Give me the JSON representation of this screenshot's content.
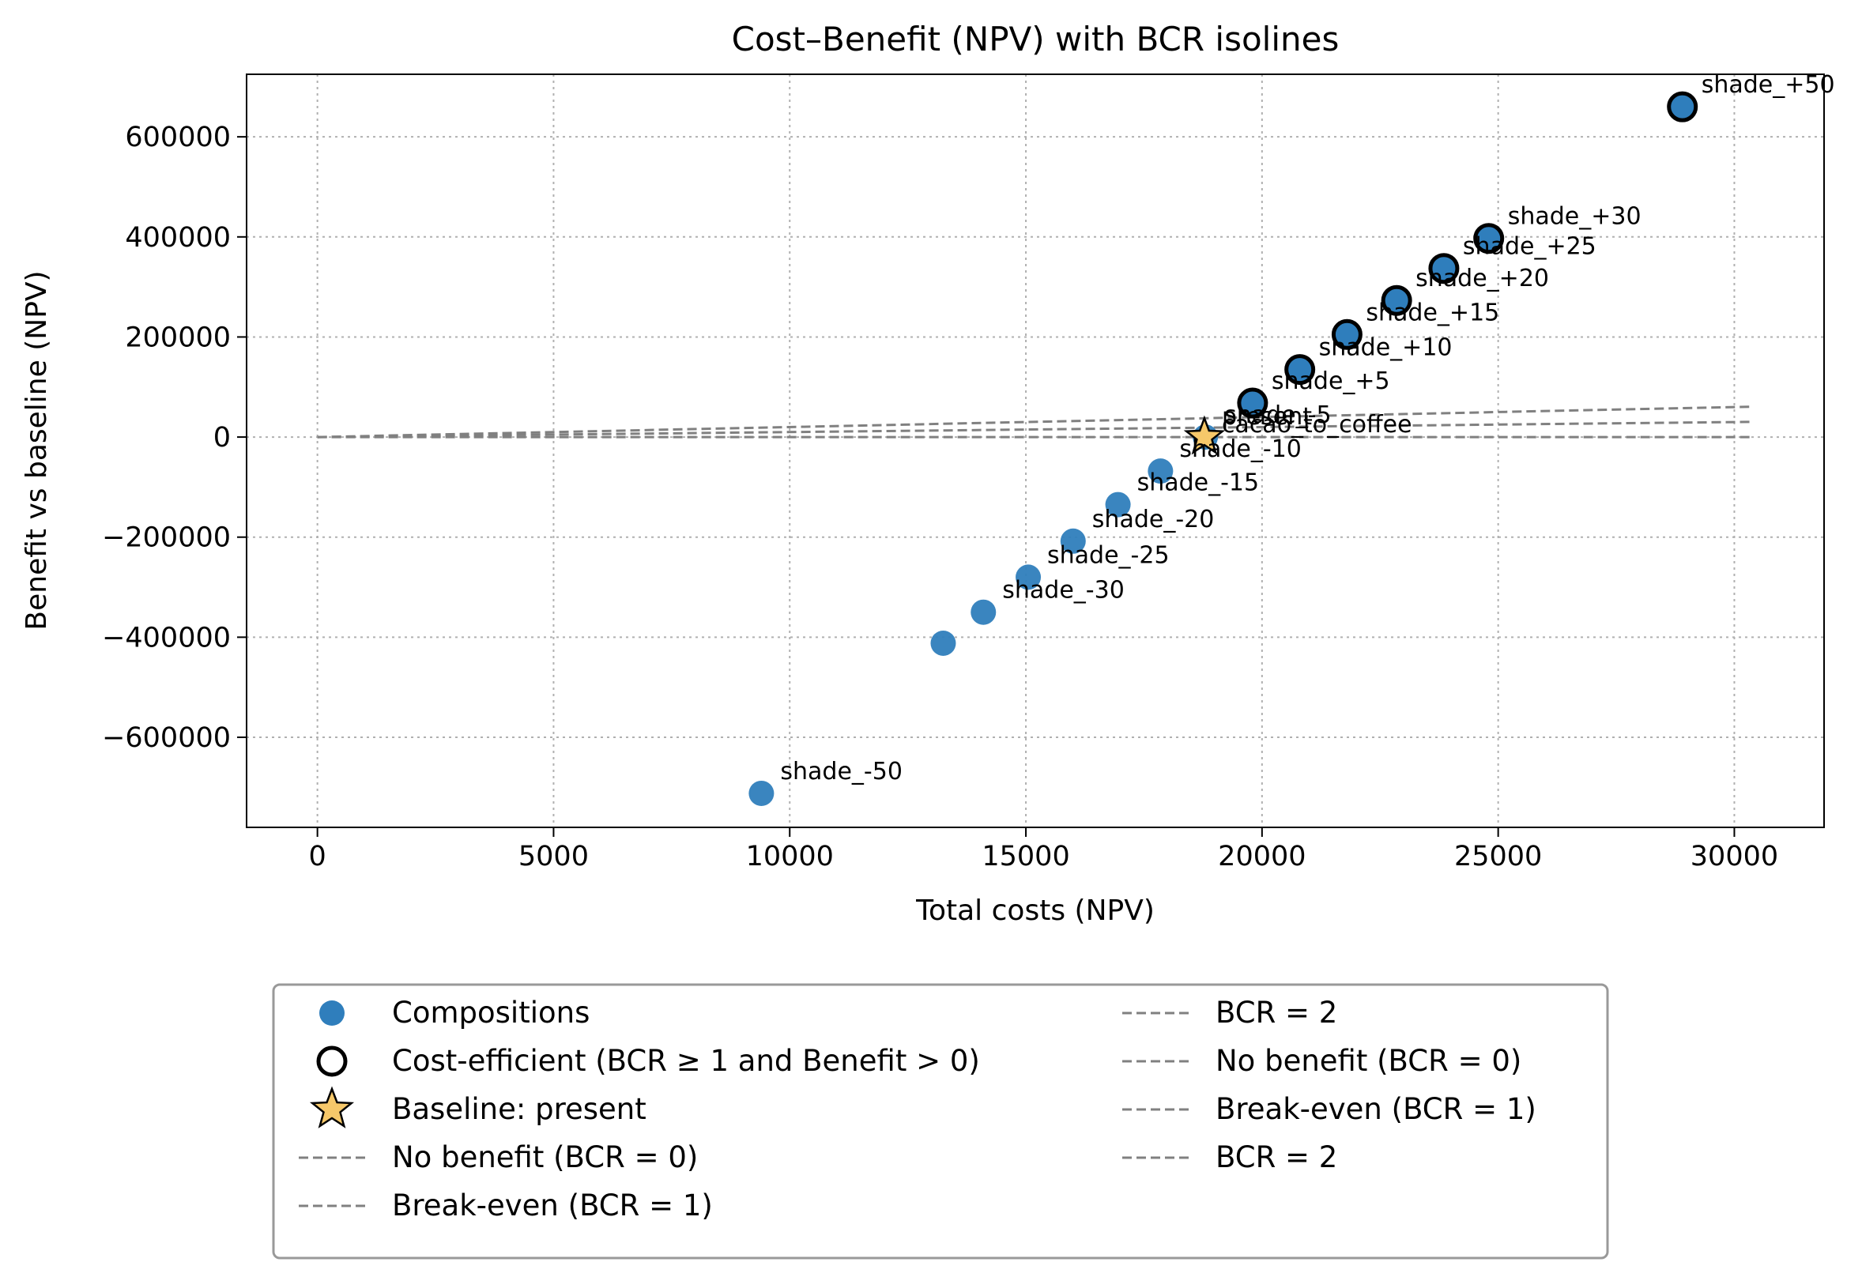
{
  "chart_data": {
    "type": "scatter",
    "title": "Cost–Benefit (NPV) with BCR isolines",
    "xlabel": "Total costs (NPV)",
    "ylabel": "Benefit vs baseline (NPV)",
    "xlim": [
      -1500,
      31900
    ],
    "ylim": [
      -780000,
      725000
    ],
    "xticks": [
      0,
      5000,
      10000,
      15000,
      20000,
      25000,
      30000
    ],
    "xtick_labels": [
      "0",
      "5000",
      "10000",
      "15000",
      "20000",
      "25000",
      "30000"
    ],
    "yticks": [
      -600000,
      -400000,
      -200000,
      0,
      200000,
      400000,
      600000
    ],
    "ytick_labels": [
      "−600000",
      "−400000",
      "−200000",
      "0",
      "200000",
      "400000",
      "600000"
    ],
    "grid": true,
    "legend_position": "below",
    "colors": {
      "compositions": "#2f7ebc",
      "cost_efficient_edge": "#000000",
      "baseline": "#f6c86a",
      "isoline": "#808080"
    },
    "points": [
      {
        "label": "shade_-50",
        "x": 9400,
        "y": -712000,
        "cost_efficient": false
      },
      {
        "label": "",
        "x": 13250,
        "y": -412000,
        "cost_efficient": false
      },
      {
        "label": "shade_-30",
        "x": 14100,
        "y": -350000,
        "cost_efficient": false
      },
      {
        "label": "shade_-25",
        "x": 15050,
        "y": -280000,
        "cost_efficient": false
      },
      {
        "label": "shade_-20",
        "x": 16000,
        "y": -208000,
        "cost_efficient": false
      },
      {
        "label": "shade_-15",
        "x": 16950,
        "y": -135000,
        "cost_efficient": false
      },
      {
        "label": "shade_-10",
        "x": 17850,
        "y": -68000,
        "cost_efficient": false
      },
      {
        "label": "shade_-5",
        "x": 18800,
        "y": 0,
        "cost_efficient": false
      },
      {
        "label": "shade_+5",
        "x": 19800,
        "y": 68000,
        "cost_efficient": true
      },
      {
        "label": "shade_+10",
        "x": 20800,
        "y": 135000,
        "cost_efficient": true
      },
      {
        "label": "shade_+15",
        "x": 21800,
        "y": 205000,
        "cost_efficient": true
      },
      {
        "label": "shade_+20",
        "x": 22850,
        "y": 273000,
        "cost_efficient": true
      },
      {
        "label": "shade_+25",
        "x": 23850,
        "y": 337000,
        "cost_efficient": true
      },
      {
        "label": "shade_+30",
        "x": 24800,
        "y": 397000,
        "cost_efficient": true
      },
      {
        "label": "shade_+50",
        "x": 28900,
        "y": 660000,
        "cost_efficient": true
      }
    ],
    "baseline": {
      "label": "present",
      "x": 18780,
      "y": 0
    },
    "annotations": [
      {
        "text": "present",
        "x": 18780,
        "y": 0
      },
      {
        "text": "cacao_to_coffee",
        "x": 18780,
        "y": 0
      }
    ],
    "isolines": [
      {
        "name": "No benefit (BCR = 0)",
        "bcr": 0,
        "x_range": [
          0,
          30400
        ]
      },
      {
        "name": "Break-even (BCR = 1)",
        "bcr": 1,
        "x_range": [
          0,
          30400
        ]
      },
      {
        "name": "BCR = 2",
        "bcr": 2,
        "x_range": [
          0,
          30400
        ]
      }
    ],
    "legend": [
      {
        "marker": "circle-filled",
        "text": "Compositions"
      },
      {
        "marker": "circle-open",
        "text": "Cost-efficient (BCR ≥ 1 and Benefit > 0)"
      },
      {
        "marker": "star",
        "text": "Baseline: present"
      },
      {
        "marker": "dash",
        "text": "No benefit (BCR = 0)"
      },
      {
        "marker": "dash",
        "text": "Break-even (BCR = 1)"
      },
      {
        "marker": "dash",
        "text": "BCR = 2"
      },
      {
        "marker": "dash",
        "text": "No benefit (BCR = 0)"
      },
      {
        "marker": "dash",
        "text": "Break-even (BCR = 1)"
      },
      {
        "marker": "dash",
        "text": "BCR = 2"
      }
    ]
  }
}
